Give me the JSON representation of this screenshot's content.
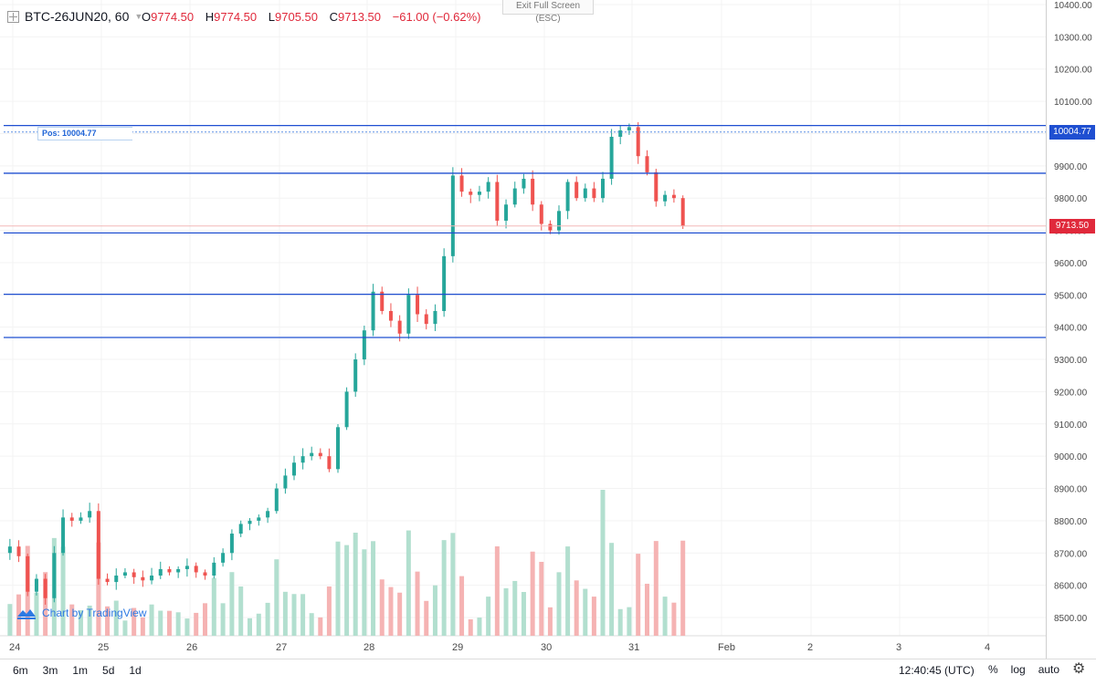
{
  "header": {
    "symbol": "BTC-26JUN20, 60",
    "ohlc": [
      {
        "key": "O",
        "value": "9774.50"
      },
      {
        "key": "H",
        "value": "9774.50"
      },
      {
        "key": "L",
        "value": "9705.50"
      },
      {
        "key": "C",
        "value": "9713.50"
      }
    ],
    "change": "−61.00 (−0.62%)"
  },
  "exit_fullscreen": "Exit Full Screen (ESC)",
  "position_label": "Pos: 10004.77",
  "branding": "Chart by TradingView",
  "price_tags": {
    "position": "10004.77",
    "last": "9713.50"
  },
  "colors": {
    "up": "#26a69a",
    "down": "#ef5350",
    "up_volume": "#b2dfcf",
    "down_volume": "#f5b3b3",
    "hline": "#1f4fd1",
    "last_tag": "#e0293b",
    "pos_tag": "#1f4fd1"
  },
  "bottom": {
    "ranges": [
      "6m",
      "3m",
      "1m",
      "5d",
      "1d"
    ],
    "time": "12:40:45 (UTC)",
    "percent": "%",
    "log": "log",
    "auto": "auto",
    "settings_icon": "gear-icon"
  },
  "chart_data": {
    "type": "candlestick",
    "timeframe": "60",
    "x_tick_labels": [
      "24",
      "25",
      "26",
      "27",
      "28",
      "29",
      "30",
      "31",
      "Feb",
      "2",
      "3",
      "4"
    ],
    "y_tick_labels": [
      "8500.00",
      "8600.00",
      "8700.00",
      "8800.00",
      "8900.00",
      "9000.00",
      "9100.00",
      "9200.00",
      "9300.00",
      "9400.00",
      "9500.00",
      "9600.00",
      "9700.00",
      "9800.00",
      "9900.00",
      "10000.00",
      "10100.00",
      "10200.00",
      "10300.00",
      "10400.00"
    ],
    "ylim": [
      8450,
      10410
    ],
    "horizontal_levels": [
      10025,
      9877,
      9692,
      9502,
      9368
    ],
    "position_level": 10004.77,
    "last_price": 9713.5,
    "close_path_by_day": [
      {
        "day": "24",
        "closes": [
          8720,
          8690,
          8580,
          8620,
          8560,
          8700,
          8810,
          8800,
          8810,
          8830
        ]
      },
      {
        "day": "25",
        "closes": [
          8620,
          8610,
          8630,
          8640,
          8625,
          8615,
          8630,
          8650,
          8640,
          8650
        ]
      },
      {
        "day": "26",
        "closes": [
          8660,
          8640,
          8630,
          8670,
          8700,
          8760,
          8790,
          8800,
          8810,
          8830
        ]
      },
      {
        "day": "27",
        "closes": [
          8900,
          8940,
          8980,
          9000,
          9010,
          9000,
          8960,
          9090,
          9200,
          9300
        ]
      },
      {
        "day": "28",
        "closes": [
          9390,
          9510,
          9450,
          9420,
          9380,
          9500,
          9440,
          9410,
          9450,
          9620
        ]
      },
      {
        "day": "29",
        "closes": [
          9870,
          9820,
          9810,
          9820,
          9850,
          9730,
          9780,
          9830,
          9860,
          9780
        ]
      },
      {
        "day": "30",
        "closes": [
          9720,
          9700,
          9760,
          9850,
          9800,
          9830,
          9800,
          9860,
          9990,
          10010
        ]
      },
      {
        "day": "31",
        "closes": [
          10020,
          9930,
          9880,
          9790,
          9810,
          9800,
          9713.5
        ]
      }
    ]
  }
}
